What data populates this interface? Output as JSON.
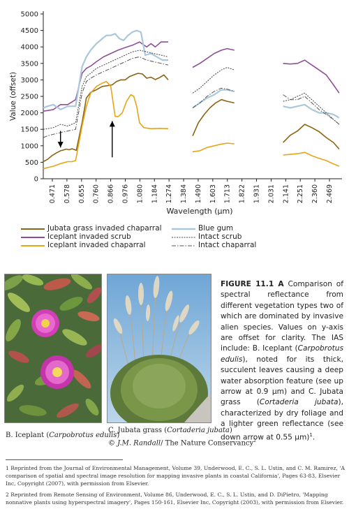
{
  "chart_data": {
    "type": "line",
    "xlabel": "Wavelength (μm)",
    "ylabel": "Value (offset)",
    "ylim": [
      0,
      5000
    ],
    "yticks": [
      0,
      500,
      1000,
      1500,
      2000,
      2500,
      3000,
      3500,
      4000,
      4500,
      5000
    ],
    "xticks": [
      "0.471",
      "0.578",
      "0.655",
      "0.760",
      "0.866",
      "0.976",
      "1.080",
      "1.184",
      "1.274",
      "1.384",
      "1.490",
      "1.603",
      "1.713",
      "1.822",
      "1.931",
      "2.031",
      "2.141",
      "2.251",
      "2.360",
      "2.469"
    ],
    "x_range": [
      0.43,
      2.51
    ],
    "segments": [
      [
        0.43,
        1.3
      ],
      [
        1.47,
        1.76
      ],
      [
        2.1,
        2.49
      ]
    ],
    "series": [
      {
        "name": "Jubata grass invaded chaparral",
        "color": "#8a6410",
        "dash": "solid",
        "points": [
          [
            0.43,
            520
          ],
          [
            0.46,
            590
          ],
          [
            0.49,
            700
          ],
          [
            0.52,
            780
          ],
          [
            0.55,
            850
          ],
          [
            0.57,
            870
          ],
          [
            0.59,
            900
          ],
          [
            0.61,
            880
          ],
          [
            0.63,
            910
          ],
          [
            0.655,
            870
          ],
          [
            0.66,
            860
          ],
          [
            0.7,
            1700
          ],
          [
            0.73,
            2450
          ],
          [
            0.76,
            2620
          ],
          [
            0.8,
            2700
          ],
          [
            0.84,
            2800
          ],
          [
            0.87,
            2820
          ],
          [
            0.91,
            2850
          ],
          [
            0.94,
            2950
          ],
          [
            0.97,
            3000
          ],
          [
            1.0,
            3000
          ],
          [
            1.03,
            3100
          ],
          [
            1.06,
            3150
          ],
          [
            1.09,
            3200
          ],
          [
            1.12,
            3180
          ],
          [
            1.15,
            3050
          ],
          [
            1.18,
            3080
          ],
          [
            1.21,
            3010
          ],
          [
            1.24,
            3070
          ],
          [
            1.27,
            3150
          ],
          [
            1.3,
            3000
          ],
          [
            1.47,
            1300
          ],
          [
            1.51,
            1700
          ],
          [
            1.55,
            1950
          ],
          [
            1.59,
            2150
          ],
          [
            1.63,
            2300
          ],
          [
            1.67,
            2400
          ],
          [
            1.71,
            2350
          ],
          [
            1.76,
            2300
          ],
          [
            2.1,
            1100
          ],
          [
            2.15,
            1320
          ],
          [
            2.2,
            1450
          ],
          [
            2.25,
            1650
          ],
          [
            2.3,
            1550
          ],
          [
            2.35,
            1430
          ],
          [
            2.4,
            1250
          ],
          [
            2.45,
            1100
          ],
          [
            2.49,
            900
          ]
        ]
      },
      {
        "name": "Iceplant invaded scrub",
        "color": "#8e4f99",
        "dash": "solid",
        "points": [
          [
            0.43,
            2050
          ],
          [
            0.46,
            2070
          ],
          [
            0.5,
            2100
          ],
          [
            0.55,
            2250
          ],
          [
            0.6,
            2250
          ],
          [
            0.655,
            2400
          ],
          [
            0.7,
            3200
          ],
          [
            0.73,
            3350
          ],
          [
            0.76,
            3420
          ],
          [
            0.8,
            3550
          ],
          [
            0.85,
            3700
          ],
          [
            0.9,
            3800
          ],
          [
            0.95,
            3900
          ],
          [
            1.0,
            3980
          ],
          [
            1.05,
            4050
          ],
          [
            1.1,
            4150
          ],
          [
            1.15,
            4000
          ],
          [
            1.18,
            4100
          ],
          [
            1.21,
            4000
          ],
          [
            1.25,
            4150
          ],
          [
            1.3,
            4150
          ],
          [
            1.47,
            3380
          ],
          [
            1.52,
            3500
          ],
          [
            1.57,
            3650
          ],
          [
            1.62,
            3800
          ],
          [
            1.67,
            3900
          ],
          [
            1.71,
            3950
          ],
          [
            1.76,
            3900
          ],
          [
            2.1,
            3500
          ],
          [
            2.15,
            3480
          ],
          [
            2.2,
            3500
          ],
          [
            2.25,
            3600
          ],
          [
            2.3,
            3450
          ],
          [
            2.35,
            3300
          ],
          [
            2.4,
            3150
          ],
          [
            2.45,
            2850
          ],
          [
            2.49,
            2600
          ]
        ]
      },
      {
        "name": "Iceplant invaded chaparral",
        "color": "#e8a417",
        "dash": "solid",
        "points": [
          [
            0.43,
            300
          ],
          [
            0.46,
            340
          ],
          [
            0.5,
            380
          ],
          [
            0.55,
            460
          ],
          [
            0.6,
            520
          ],
          [
            0.63,
            520
          ],
          [
            0.655,
            550
          ],
          [
            0.7,
            1600
          ],
          [
            0.73,
            2200
          ],
          [
            0.76,
            2600
          ],
          [
            0.8,
            2800
          ],
          [
            0.84,
            2900
          ],
          [
            0.87,
            2950
          ],
          [
            0.9,
            2800
          ],
          [
            0.93,
            1900
          ],
          [
            0.95,
            1880
          ],
          [
            0.98,
            2000
          ],
          [
            1.01,
            2350
          ],
          [
            1.04,
            2550
          ],
          [
            1.06,
            2500
          ],
          [
            1.08,
            2200
          ],
          [
            1.1,
            1700
          ],
          [
            1.13,
            1550
          ],
          [
            1.18,
            1520
          ],
          [
            1.24,
            1530
          ],
          [
            1.3,
            1520
          ],
          [
            1.47,
            820
          ],
          [
            1.52,
            850
          ],
          [
            1.57,
            950
          ],
          [
            1.62,
            1000
          ],
          [
            1.67,
            1050
          ],
          [
            1.71,
            1080
          ],
          [
            1.76,
            1060
          ],
          [
            2.1,
            720
          ],
          [
            2.15,
            740
          ],
          [
            2.2,
            760
          ],
          [
            2.25,
            800
          ],
          [
            2.3,
            700
          ],
          [
            2.35,
            620
          ],
          [
            2.4,
            550
          ],
          [
            2.45,
            450
          ],
          [
            2.49,
            380
          ]
        ]
      },
      {
        "name": "Blue gum",
        "color": "#a9c8dc",
        "dash": "solid",
        "points": [
          [
            0.43,
            2150
          ],
          [
            0.46,
            2200
          ],
          [
            0.5,
            2250
          ],
          [
            0.55,
            2100
          ],
          [
            0.6,
            2200
          ],
          [
            0.655,
            2200
          ],
          [
            0.7,
            3400
          ],
          [
            0.73,
            3700
          ],
          [
            0.76,
            3900
          ],
          [
            0.8,
            4100
          ],
          [
            0.84,
            4250
          ],
          [
            0.87,
            4350
          ],
          [
            0.9,
            4350
          ],
          [
            0.93,
            4400
          ],
          [
            0.96,
            4250
          ],
          [
            0.99,
            4200
          ],
          [
            1.02,
            4350
          ],
          [
            1.05,
            4450
          ],
          [
            1.08,
            4500
          ],
          [
            1.11,
            4450
          ],
          [
            1.14,
            3750
          ],
          [
            1.18,
            3800
          ],
          [
            1.22,
            3700
          ],
          [
            1.26,
            3600
          ],
          [
            1.3,
            3600
          ],
          [
            1.47,
            2150
          ],
          [
            1.52,
            2300
          ],
          [
            1.57,
            2450
          ],
          [
            1.62,
            2550
          ],
          [
            1.67,
            2700
          ],
          [
            1.71,
            2700
          ],
          [
            1.76,
            2650
          ],
          [
            2.1,
            2200
          ],
          [
            2.15,
            2150
          ],
          [
            2.2,
            2200
          ],
          [
            2.25,
            2250
          ],
          [
            2.3,
            2100
          ],
          [
            2.35,
            2000
          ],
          [
            2.4,
            2000
          ],
          [
            2.45,
            1950
          ],
          [
            2.49,
            1850
          ]
        ]
      },
      {
        "name": "Intact scrub",
        "color": "#444444",
        "dash": "dotted",
        "points": [
          [
            0.43,
            1500
          ],
          [
            0.46,
            1520
          ],
          [
            0.5,
            1550
          ],
          [
            0.55,
            1650
          ],
          [
            0.6,
            1600
          ],
          [
            0.655,
            1700
          ],
          [
            0.7,
            2800
          ],
          [
            0.73,
            3100
          ],
          [
            0.76,
            3200
          ],
          [
            0.8,
            3350
          ],
          [
            0.85,
            3450
          ],
          [
            0.9,
            3550
          ],
          [
            0.95,
            3650
          ],
          [
            1.0,
            3750
          ],
          [
            1.05,
            3850
          ],
          [
            1.1,
            3900
          ],
          [
            1.15,
            3850
          ],
          [
            1.2,
            3800
          ],
          [
            1.25,
            3750
          ],
          [
            1.3,
            3700
          ],
          [
            1.47,
            2600
          ],
          [
            1.52,
            2750
          ],
          [
            1.57,
            2950
          ],
          [
            1.62,
            3150
          ],
          [
            1.67,
            3300
          ],
          [
            1.71,
            3380
          ],
          [
            1.76,
            3300
          ],
          [
            2.1,
            2350
          ],
          [
            2.15,
            2400
          ],
          [
            2.2,
            2500
          ],
          [
            2.25,
            2600
          ],
          [
            2.3,
            2400
          ],
          [
            2.35,
            2200
          ],
          [
            2.4,
            2000
          ],
          [
            2.45,
            1800
          ],
          [
            2.49,
            1650
          ]
        ]
      },
      {
        "name": "Intact chaparral",
        "color": "#555555",
        "dash": "dashdot",
        "points": [
          [
            0.43,
            1250
          ],
          [
            0.46,
            1300
          ],
          [
            0.5,
            1350
          ],
          [
            0.55,
            1400
          ],
          [
            0.6,
            1450
          ],
          [
            0.655,
            1500
          ],
          [
            0.7,
            2600
          ],
          [
            0.73,
            2950
          ],
          [
            0.76,
            3050
          ],
          [
            0.8,
            3150
          ],
          [
            0.85,
            3250
          ],
          [
            0.9,
            3350
          ],
          [
            0.95,
            3450
          ],
          [
            1.0,
            3550
          ],
          [
            1.05,
            3650
          ],
          [
            1.1,
            3700
          ],
          [
            1.15,
            3600
          ],
          [
            1.2,
            3550
          ],
          [
            1.25,
            3500
          ],
          [
            1.3,
            3450
          ],
          [
            1.47,
            2150
          ],
          [
            1.52,
            2300
          ],
          [
            1.57,
            2500
          ],
          [
            1.62,
            2650
          ],
          [
            1.67,
            2750
          ],
          [
            1.71,
            2720
          ],
          [
            1.76,
            2650
          ],
          [
            2.1,
            2550
          ],
          [
            2.15,
            2400
          ],
          [
            2.2,
            2400
          ],
          [
            2.25,
            2500
          ],
          [
            2.3,
            2300
          ],
          [
            2.35,
            2100
          ],
          [
            2.4,
            1950
          ],
          [
            2.45,
            1800
          ],
          [
            2.49,
            1650
          ]
        ]
      }
    ],
    "annotations": [
      {
        "type": "arrow-down",
        "x": 0.55,
        "from_y": 1450,
        "to_y": 950
      },
      {
        "type": "arrow-up",
        "x": 0.91,
        "from_y": 650,
        "to_y": 1750
      }
    ]
  },
  "photo_b_caption": {
    "prefix": "B. Iceplant (",
    "species": "Carpobrotus edulis",
    "suffix": ")"
  },
  "photo_c_caption": {
    "prefix": "C. Jubata grass (",
    "species": "Cortaderia jubata",
    "suffix": ")"
  },
  "photo_credit": {
    "name": "© J.M. Randall",
    "org": "/ The Nature Conservancy",
    "sup": "2"
  },
  "figure_caption": {
    "label": "FIGURE 11.1 A",
    "p1": " Comparison of spectral reflectance from different vegetation types two of which are dominated by invasive alien species. Values on y-axis are offset for clarity. The IAS include: B. Iceplant (",
    "sp1": "Carpobrotus edulis",
    "p2": "), noted for its thick, succulent leaves causing a deep water absorption feature (see up arrow at 0.9 μm) and C. Jubata grass (",
    "sp2": "Cortaderia jubata",
    "p3": "), characterized by dry foliage and a lighter green reflectance (see down arrow at 0.55 μm)",
    "sup": "1",
    "end": "."
  },
  "footnotes": [
    "1 Reprinted from the Journal of Environmental Management, Volume 39, Underwood, E. C., S. L. Ustin, and C. M. Ramirez, 'A comparison of spatial and spectral image resolution for mapping invasive plants in coastal California', Pages 63-83, Elsevier Inc, Copyright (2007), with permission from Elsevier.",
    "2 Reprinted from Remote Sensing of Environment, Volume 86, Underwood, E. C., S. L. Ustin, and D. DiPietro, 'Mapping nonnative plants using hyperspectral imagery', Pages 150-161, Elsevier Inc, Copyright (2003), with permission from Elsevier."
  ]
}
